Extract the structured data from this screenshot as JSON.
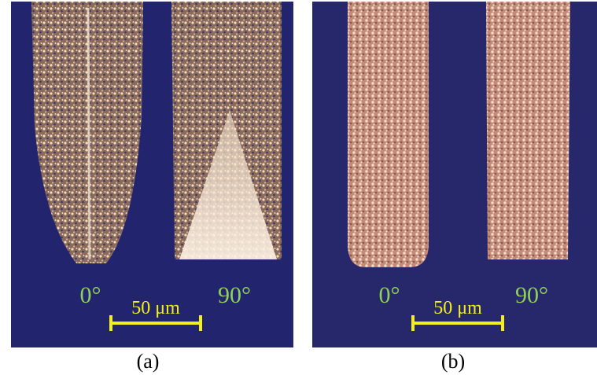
{
  "panels": [
    {
      "caption": "(a)",
      "labels": [
        "0°",
        "90°"
      ],
      "scale": "50 μm"
    },
    {
      "caption": "(b)",
      "labels": [
        "0°",
        "90°"
      ],
      "scale": "50 μm"
    }
  ]
}
